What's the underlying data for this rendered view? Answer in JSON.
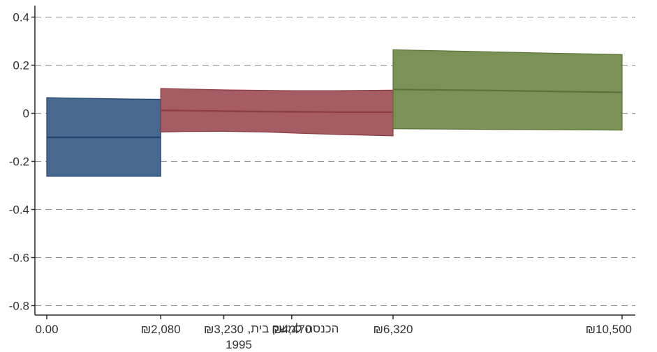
{
  "chart_data": {
    "type": "area",
    "xlabel_line1": "הכנסה למשק בית,",
    "xlabel_line2": "1995",
    "ylabel": "",
    "title": "",
    "xlim": [
      0,
      10500
    ],
    "ylim": [
      -0.85,
      0.43
    ],
    "x_ticks": [
      {
        "value": 0,
        "label": "0.00"
      },
      {
        "value": 2080,
        "label": "₪2,080"
      },
      {
        "value": 3230,
        "label": "₪3,230"
      },
      {
        "value": 4470,
        "label": "₪4,470"
      },
      {
        "value": 6320,
        "label": "₪6,320"
      },
      {
        "value": 10500,
        "label": "₪10,500"
      }
    ],
    "y_ticks": [
      {
        "value": 0.4,
        "label": "0.4"
      },
      {
        "value": 0.2,
        "label": "0.2"
      },
      {
        "value": 0,
        "label": "0"
      },
      {
        "value": -0.2,
        "label": "-0.2"
      },
      {
        "value": -0.4,
        "label": "-0.4"
      },
      {
        "value": -0.6,
        "label": "-0.6"
      },
      {
        "value": -0.8,
        "label": "-0.8"
      }
    ],
    "grid": "horizontal-dashed",
    "series": [
      {
        "color": "#47698f",
        "line_color": "#22446e",
        "x": [
          0,
          520,
          1040,
          1560,
          2080
        ],
        "estimate": [
          -0.1,
          -0.1,
          -0.1,
          -0.1,
          -0.1
        ],
        "upper": [
          0.065,
          0.063,
          0.061,
          0.059,
          0.058
        ],
        "lower": [
          -0.262,
          -0.262,
          -0.262,
          -0.262,
          -0.262
        ]
      },
      {
        "color": "#a65c63",
        "line_color": "#8a3a43",
        "x": [
          2080,
          2500,
          3230,
          4000,
          4470,
          5300,
          6320
        ],
        "estimate": [
          0.012,
          0.011,
          0.009,
          0.007,
          0.006,
          0.005,
          0.005
        ],
        "upper": [
          0.103,
          0.101,
          0.097,
          0.095,
          0.094,
          0.094,
          0.096
        ],
        "lower": [
          -0.078,
          -0.076,
          -0.075,
          -0.078,
          -0.082,
          -0.088,
          -0.094
        ]
      },
      {
        "color": "#7b9256",
        "line_color": "#5b7238",
        "x": [
          6320,
          6700,
          8000,
          9200,
          10500
        ],
        "estimate": [
          0.099,
          0.098,
          0.095,
          0.091,
          0.087
        ],
        "upper": [
          0.264,
          0.262,
          0.256,
          0.25,
          0.244
        ],
        "lower": [
          -0.064,
          -0.065,
          -0.067,
          -0.068,
          -0.07
        ]
      }
    ]
  }
}
